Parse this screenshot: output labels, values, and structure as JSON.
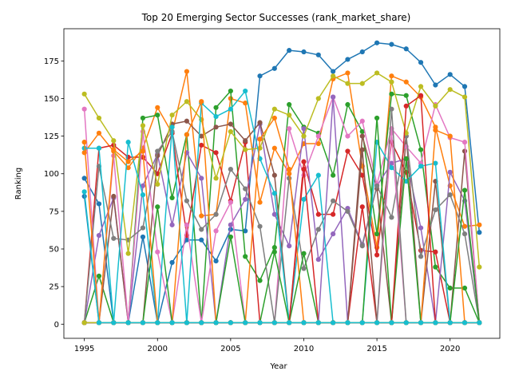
{
  "chart_data": {
    "type": "line",
    "title": "Top 20 Emerging Sector Successes (rank_market_share)",
    "xlabel": "Year",
    "ylabel": "Ranking",
    "xlim": [
      1993.6,
      2023.4
    ],
    "ylim": [
      -9.4,
      196.4
    ],
    "x_ticks": [
      1995,
      2000,
      2005,
      2010,
      2015,
      2020
    ],
    "y_ticks": [
      0,
      25,
      50,
      75,
      100,
      125,
      150,
      175
    ],
    "grid": false,
    "legend": "none",
    "x": [
      1995,
      1996,
      1997,
      1998,
      1999,
      2000,
      2001,
      2002,
      2003,
      2004,
      2005,
      2006,
      2007,
      2008,
      2009,
      2010,
      2011,
      2012,
      2013,
      2014,
      2015,
      2016,
      2017,
      2018,
      2019,
      2020,
      2021,
      2022
    ],
    "series": [
      {
        "color": "#1f77b4",
        "values": [
          97,
          80,
          1,
          1,
          58,
          1,
          41,
          56,
          56,
          42,
          63,
          62,
          165,
          170,
          182,
          181,
          179,
          168,
          176,
          181,
          187,
          186,
          183,
          174,
          159,
          166,
          158,
          61
        ]
      },
      {
        "color": "#ff7f0e",
        "values": [
          114,
          127,
          115,
          104,
          117,
          144,
          127,
          168,
          72,
          73,
          150,
          147,
          81,
          117,
          100,
          120,
          120,
          163,
          167,
          105,
          51,
          165,
          161,
          151,
          131,
          92,
          65,
          66
        ]
      },
      {
        "color": "#2ca02c",
        "values": [
          1,
          32,
          1,
          1,
          137,
          139,
          84,
          126,
          1,
          144,
          155,
          45,
          29,
          51,
          146,
          131,
          127,
          99,
          146,
          128,
          60,
          153,
          152,
          116,
          38,
          24,
          24,
          1
        ]
      },
      {
        "color": "#d62728",
        "values": [
          1,
          117,
          119,
          111,
          111,
          100,
          127,
          59,
          119,
          114,
          82,
          121,
          1,
          1,
          1,
          108,
          73,
          73,
          115,
          99,
          46,
          121,
          101,
          49,
          48,
          1,
          1,
          1
        ]
      },
      {
        "color": "#9467bd",
        "values": [
          1,
          59,
          84,
          1,
          92,
          113,
          66,
          114,
          97,
          1,
          66,
          83,
          133,
          73,
          52,
          130,
          43,
          60,
          77,
          53,
          92,
          107,
          110,
          64,
          1,
          101,
          82,
          1
        ]
      },
      {
        "color": "#8c564b",
        "values": [
          1,
          1,
          85,
          1,
          1,
          112,
          133,
          135,
          125,
          131,
          133,
          122,
          134,
          99,
          1,
          1,
          1,
          1,
          1,
          125,
          90,
          1,
          125,
          1,
          95,
          1,
          115,
          1
        ]
      },
      {
        "color": "#e377c2",
        "values": [
          143,
          1,
          112,
          1,
          128,
          48,
          1,
          66,
          1,
          62,
          81,
          1,
          1,
          1,
          130,
          99,
          125,
          151,
          125,
          135,
          93,
          130,
          118,
          107,
          146,
          124,
          121,
          1
        ]
      },
      {
        "color": "#7f7f7f",
        "values": [
          1,
          105,
          57,
          56,
          64,
          115,
          128,
          82,
          63,
          73,
          103,
          90,
          65,
          1,
          97,
          37,
          63,
          82,
          75,
          52,
          92,
          71,
          125,
          45,
          76,
          86,
          60,
          1
        ]
      },
      {
        "color": "#bcbd22",
        "values": [
          153,
          137,
          122,
          47,
          132,
          93,
          139,
          148,
          136,
          97,
          128,
          116,
          117,
          143,
          139,
          125,
          150,
          165,
          160,
          160,
          167,
          161,
          127,
          158,
          145,
          156,
          151,
          38
        ]
      },
      {
        "color": "#17becf",
        "values": [
          117,
          117,
          1,
          121,
          86,
          1,
          131,
          1,
          147,
          138,
          143,
          155,
          110,
          87,
          1,
          83,
          99,
          1,
          1,
          1,
          121,
          104,
          95,
          105,
          107,
          1,
          1,
          1
        ]
      },
      {
        "color": "#1f77b4",
        "values": [
          85,
          1,
          1,
          1,
          1,
          1,
          1,
          1,
          1,
          1,
          1,
          1,
          1,
          1,
          1,
          1,
          1,
          1,
          1,
          1,
          1,
          1,
          1,
          1,
          1,
          1,
          1,
          1
        ]
      },
      {
        "color": "#ff7f0e",
        "values": [
          121,
          1,
          116,
          108,
          115,
          1,
          1,
          126,
          148,
          1,
          1,
          1,
          123,
          137,
          103,
          1,
          1,
          1,
          1,
          1,
          1,
          1,
          1,
          1,
          129,
          125,
          1,
          1
        ]
      },
      {
        "color": "#2ca02c",
        "values": [
          1,
          1,
          1,
          1,
          1,
          78,
          1,
          1,
          1,
          1,
          58,
          1,
          1,
          48,
          1,
          47,
          1,
          1,
          1,
          1,
          137,
          1,
          110,
          1,
          1,
          1,
          89,
          1
        ]
      },
      {
        "color": "#d62728",
        "values": [
          1,
          1,
          1,
          1,
          1,
          1,
          1,
          1,
          1,
          1,
          1,
          1,
          1,
          1,
          1,
          103,
          1,
          1,
          1,
          78,
          1,
          1,
          145,
          152,
          1,
          1,
          1,
          1
        ]
      },
      {
        "color": "#9467bd",
        "values": [
          1,
          1,
          1,
          1,
          1,
          1,
          1,
          1,
          1,
          1,
          1,
          1,
          1,
          1,
          1,
          1,
          1,
          151,
          1,
          1,
          1,
          1,
          1,
          1,
          1,
          1,
          1,
          1
        ]
      },
      {
        "color": "#8c564b",
        "values": [
          1,
          1,
          1,
          1,
          1,
          1,
          1,
          1,
          1,
          1,
          1,
          1,
          1,
          1,
          1,
          1,
          1,
          1,
          1,
          116,
          1,
          1,
          1,
          1,
          1,
          1,
          1,
          1
        ]
      },
      {
        "color": "#e377c2",
        "values": [
          1,
          1,
          1,
          1,
          1,
          1,
          1,
          1,
          1,
          1,
          1,
          1,
          1,
          1,
          1,
          1,
          1,
          1,
          1,
          1,
          1,
          127,
          1,
          1,
          1,
          1,
          1,
          1
        ]
      },
      {
        "color": "#7f7f7f",
        "values": [
          1,
          1,
          1,
          1,
          1,
          1,
          1,
          1,
          1,
          1,
          1,
          1,
          1,
          1,
          1,
          1,
          1,
          1,
          1,
          1,
          1,
          143,
          1,
          1,
          1,
          1,
          1,
          1
        ]
      },
      {
        "color": "#bcbd22",
        "values": [
          1,
          1,
          1,
          1,
          1,
          1,
          1,
          1,
          1,
          1,
          1,
          1,
          1,
          1,
          1,
          1,
          1,
          1,
          1,
          1,
          1,
          1,
          1,
          1,
          1,
          1,
          1,
          1
        ]
      },
      {
        "color": "#17becf",
        "values": [
          88,
          1,
          1,
          1,
          1,
          1,
          1,
          1,
          1,
          1,
          1,
          1,
          1,
          1,
          1,
          1,
          1,
          1,
          1,
          1,
          1,
          1,
          1,
          1,
          1,
          1,
          1,
          1
        ]
      }
    ]
  }
}
